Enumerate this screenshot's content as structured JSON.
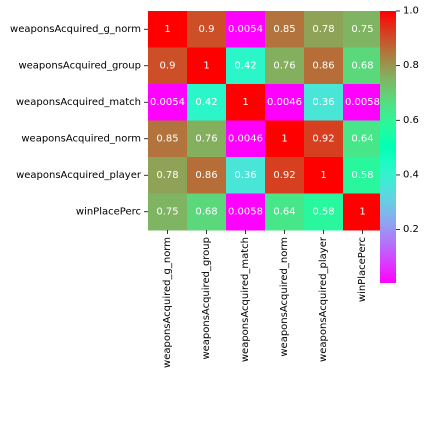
{
  "chart_data": {
    "type": "heatmap",
    "rows": [
      "weaponsAcquired_g_norm",
      "weaponsAcquired_group",
      "weaponsAcquired_match",
      "weaponsAcquired_norm",
      "weaponsAcquired_player",
      "winPlacePerc"
    ],
    "columns": [
      "weaponsAcquired_g_norm",
      "weaponsAcquired_group",
      "weaponsAcquired_match",
      "weaponsAcquired_norm",
      "weaponsAcquired_player",
      "winPlacePerc"
    ],
    "values": [
      [
        1,
        0.9,
        0.0054,
        0.85,
        0.78,
        0.75
      ],
      [
        0.9,
        1,
        0.42,
        0.76,
        0.86,
        0.68
      ],
      [
        0.0054,
        0.42,
        1,
        0.0046,
        0.36,
        0.0058
      ],
      [
        0.85,
        0.76,
        0.0046,
        1,
        0.92,
        0.64
      ],
      [
        0.78,
        0.86,
        0.36,
        0.92,
        1,
        0.58
      ],
      [
        0.75,
        0.68,
        0.0058,
        0.64,
        0.58,
        1
      ]
    ],
    "cell_labels": [
      [
        "1",
        "0.9",
        "0.0054",
        "0.85",
        "0.78",
        "0.75"
      ],
      [
        "0.9",
        "1",
        "0.42",
        "0.76",
        "0.86",
        "0.68"
      ],
      [
        "0.0054",
        "0.42",
        "1",
        "0.0046",
        "0.36",
        "0.0058"
      ],
      [
        "0.85",
        "0.76",
        "0.0046",
        "1",
        "0.92",
        "0.64"
      ],
      [
        "0.78",
        "0.86",
        "0.36",
        "0.92",
        "1",
        "0.58"
      ],
      [
        "0.75",
        "0.68",
        "0.0058",
        "0.64",
        "0.58",
        "1"
      ]
    ],
    "colormap": "rainbow",
    "vmin": 0.0046,
    "vmax": 1,
    "colorbar_ticks": [
      {
        "value": 0.2,
        "label": "0.2"
      },
      {
        "value": 0.4,
        "label": "0.4"
      },
      {
        "value": 0.6,
        "label": "0.6"
      },
      {
        "value": 0.8,
        "label": "0.8"
      },
      {
        "value": 1.0,
        "label": "1.0"
      }
    ],
    "title": "",
    "xlabel": "",
    "ylabel": "",
    "annotation_text_color": "#ffffff"
  }
}
